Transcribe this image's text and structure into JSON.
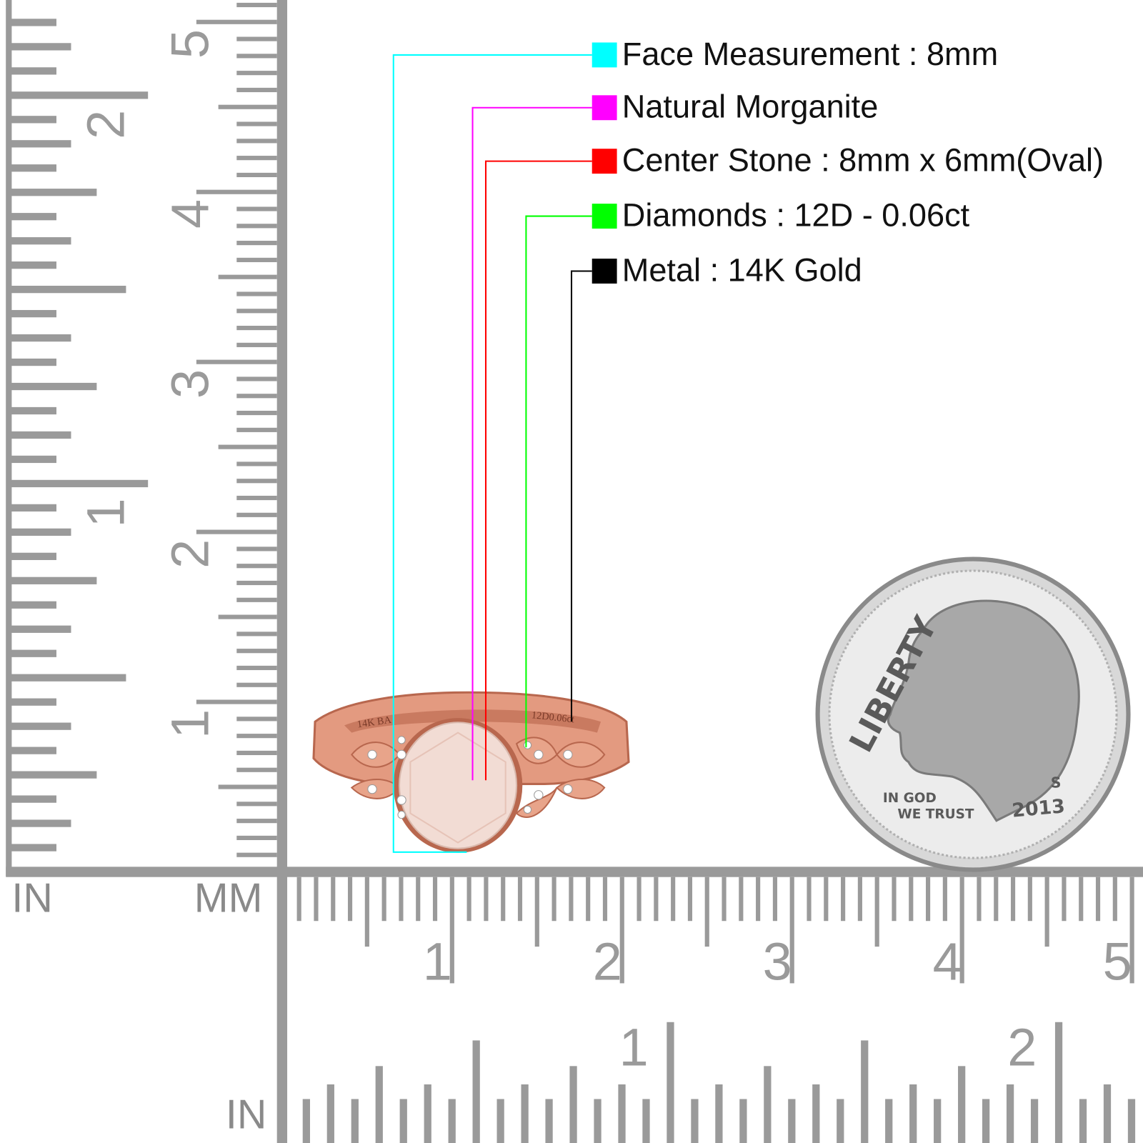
{
  "legend": [
    {
      "label": "Face Measurement : 8mm",
      "color": "#00ffff"
    },
    {
      "label": "Natural Morganite",
      "color": "#ff00ff"
    },
    {
      "label": "Center Stone : 8mm x 6mm(Oval)",
      "color": "#ff0000"
    },
    {
      "label": "Diamonds : 12D - 0.06ct",
      "color": "#00ff00"
    },
    {
      "label": "Metal : 14K Gold",
      "color": "#000000"
    }
  ],
  "left_ruler": {
    "unit_in": "IN",
    "unit_mm": "MM",
    "inch_labels": [
      "1",
      "2"
    ],
    "cm_labels": [
      "1",
      "2",
      "3",
      "4",
      "5"
    ]
  },
  "bottom_ruler": {
    "cm_labels": [
      "1",
      "2",
      "3",
      "4",
      "5"
    ],
    "inch_labels": [
      "1",
      "2"
    ],
    "unit_in": "IN"
  },
  "ring": {
    "engraving_left": "14K BA",
    "engraving_right": "12D0.06ct"
  },
  "coin": {
    "legend": "LIBERTY",
    "motto_line1": "IN GOD",
    "motto_line2": "WE TRUST",
    "year": "2013",
    "mint_mark": "S"
  }
}
